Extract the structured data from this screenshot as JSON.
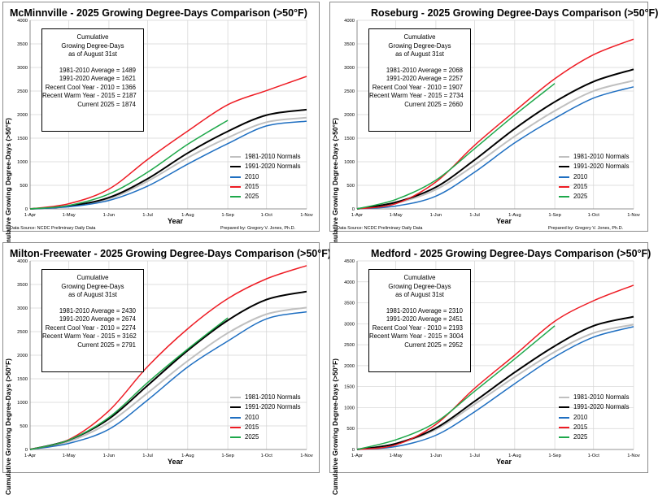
{
  "colors": {
    "n8110": "#c0c0c0",
    "n9120": "#000000",
    "y2010": "#1f6fc1",
    "y2015": "#ee1c24",
    "y2025": "#1ea84a",
    "grid": "#d4d4d4"
  },
  "common": {
    "ylabel": "Cumulative Growing Degree-Days (>50°F)",
    "xlabel": "Year",
    "source": "Data Source: NCDC Preliminary Daily Data",
    "prepared": "Prepared by: Gregory V. Jones, Ph.D.",
    "box_head": [
      "Cumulative",
      "Growing Degree-Days",
      "as of August 31st"
    ],
    "legend": [
      "1981-2010 Normals",
      "1991-2020 Normals",
      "2010",
      "2015",
      "2025"
    ]
  },
  "panels": [
    {
      "title": "McMinnville - 2025 Growing Degree-Days Comparison (>50°F)",
      "stats": [
        "1981-2010 Average = 1489",
        "1991-2020 Average = 1621",
        "Recent Cool Year - 2010 = 1366",
        "Recent Warm Year - 2015 = 2187",
        "Current 2025 = 1874"
      ],
      "chart_data": {
        "type": "line",
        "xticks": [
          "1-Apr",
          "1-May",
          "1-Jun",
          "1-Jul",
          "1-Aug",
          "1-Sep",
          "1-Oct",
          "1-Nov"
        ],
        "ylim": [
          0,
          4000
        ],
        "ytick_step": 500,
        "series": [
          {
            "name": "1981-2010 Normals",
            "key": "n8110",
            "x": [
              0,
              30,
              61,
              91,
              122,
              153,
              183,
              214
            ],
            "y": [
              0,
              55,
              215,
              590,
              1085,
              1510,
              1840,
              1935
            ]
          },
          {
            "name": "1991-2020 Normals",
            "key": "n9120",
            "x": [
              0,
              30,
              61,
              91,
              122,
              153,
              183,
              214
            ],
            "y": [
              0,
              60,
              240,
              640,
              1185,
              1645,
              1990,
              2105
            ]
          },
          {
            "name": "2010",
            "key": "y2010",
            "x": [
              0,
              30,
              61,
              91,
              122,
              153,
              183,
              214
            ],
            "y": [
              0,
              45,
              180,
              485,
              950,
              1385,
              1760,
              1860
            ]
          },
          {
            "name": "2015",
            "key": "y2015",
            "x": [
              0,
              30,
              61,
              91,
              122,
              153,
              183,
              214
            ],
            "y": [
              0,
              110,
              420,
              1050,
              1650,
              2210,
              2510,
              2810
            ]
          },
          {
            "name": "2025",
            "key": "y2025",
            "x": [
              0,
              30,
              61,
              91,
              122,
              153
            ],
            "y": [
              0,
              75,
              315,
              780,
              1370,
              1880
            ]
          }
        ]
      }
    },
    {
      "title": "Roseburg - 2025 Growing Degree-Days Comparison (>50°F)",
      "stats": [
        "1981-2010 Average = 2068",
        "1991-2020 Average = 2257",
        "Recent Cool Year - 2010 = 1907",
        "Recent Warm Year - 2015 = 2734",
        "Current 2025 = 2660"
      ],
      "chart_data": {
        "type": "line",
        "xticks": [
          "1-Apr",
          "1-May",
          "1-Jun",
          "1-Jul",
          "1-Aug",
          "1-Sep",
          "1-Oct",
          "1-Nov"
        ],
        "ylim": [
          0,
          4000
        ],
        "ytick_step": 500,
        "series": [
          {
            "name": "1981-2010 Normals",
            "key": "n8110",
            "x": [
              0,
              30,
              61,
              91,
              122,
              153,
              183,
              214
            ],
            "y": [
              0,
              120,
              410,
              930,
              1540,
              2080,
              2500,
              2720
            ]
          },
          {
            "name": "1991-2020 Normals",
            "key": "n9120",
            "x": [
              0,
              30,
              61,
              91,
              122,
              153,
              183,
              214
            ],
            "y": [
              0,
              140,
              460,
              1040,
              1700,
              2270,
              2700,
              2960
            ]
          },
          {
            "name": "2010",
            "key": "y2010",
            "x": [
              0,
              30,
              61,
              91,
              122,
              153,
              183,
              214
            ],
            "y": [
              0,
              60,
              270,
              780,
              1400,
              1920,
              2350,
              2590
            ]
          },
          {
            "name": "2015",
            "key": "y2015",
            "x": [
              0,
              30,
              61,
              91,
              122,
              153,
              183,
              214
            ],
            "y": [
              0,
              110,
              570,
              1350,
              2070,
              2760,
              3270,
              3600
            ]
          },
          {
            "name": "2025",
            "key": "y2025",
            "x": [
              0,
              30,
              61,
              91,
              122,
              153
            ],
            "y": [
              0,
              200,
              610,
              1280,
              1990,
              2660
            ]
          }
        ]
      }
    },
    {
      "title": "Milton-Freewater - 2025 Growing Degree-Days Comparison (>50°F)",
      "stats": [
        "1981-2010 Average = 2430",
        "1991-2020 Average = 2674",
        "Recent Cool Year - 2010 = 2274",
        "Recent Warm Year - 2015 = 3162",
        "Current 2025 = 2791"
      ],
      "chart_data": {
        "type": "line",
        "xticks": [
          "1-Apr",
          "1-May",
          "1-Jun",
          "1-Jul",
          "1-Aug",
          "1-Sep",
          "1-Oct",
          "1-Nov"
        ],
        "ylim": [
          0,
          4000
        ],
        "ytick_step": 500,
        "series": [
          {
            "name": "1981-2010 Normals",
            "key": "n8110",
            "x": [
              0,
              30,
              61,
              91,
              122,
              153,
              183,
              214
            ],
            "y": [
              0,
              170,
              570,
              1200,
              1880,
              2470,
              2870,
              3010
            ]
          },
          {
            "name": "1991-2020 Normals",
            "key": "n9120",
            "x": [
              0,
              30,
              61,
              91,
              122,
              153,
              183,
              214
            ],
            "y": [
              0,
              200,
              650,
              1360,
              2100,
              2740,
              3180,
              3350
            ]
          },
          {
            "name": "2010",
            "key": "y2010",
            "x": [
              0,
              30,
              61,
              91,
              122,
              153,
              183,
              214
            ],
            "y": [
              0,
              130,
              430,
              1050,
              1750,
              2300,
              2770,
              2920
            ]
          },
          {
            "name": "2015",
            "key": "y2015",
            "x": [
              0,
              30,
              61,
              91,
              122,
              153,
              183,
              214
            ],
            "y": [
              0,
              210,
              820,
              1760,
              2560,
              3200,
              3620,
              3900
            ]
          },
          {
            "name": "2025",
            "key": "y2025",
            "x": [
              0,
              30,
              61,
              91,
              122,
              153
            ],
            "y": [
              0,
              200,
              680,
              1420,
              2130,
              2791
            ]
          }
        ]
      }
    },
    {
      "title": "Medford - 2025 Growing Degree-Days Comparison (>50°F)",
      "stats": [
        "1981-2010 Average = 2310",
        "1991-2020 Average = 2451",
        "Recent Cool Year - 2010 = 2193",
        "Recent Warm Year - 2015 = 3004",
        "Current 2025 = 2952"
      ],
      "chart_data": {
        "type": "line",
        "xticks": [
          "1-Apr",
          "1-May",
          "1-Jun",
          "1-Jul",
          "1-Aug",
          "1-Sep",
          "1-Oct",
          "1-Nov"
        ],
        "ylim": [
          0,
          4500
        ],
        "ytick_step": 500,
        "series": [
          {
            "name": "1981-2010 Normals",
            "key": "n8110",
            "x": [
              0,
              30,
              61,
              91,
              122,
              153,
              183,
              214
            ],
            "y": [
              0,
              130,
              480,
              1080,
              1730,
              2330,
              2780,
              2980
            ]
          },
          {
            "name": "1991-2020 Normals",
            "key": "n9120",
            "x": [
              0,
              30,
              61,
              91,
              122,
              153,
              183,
              214
            ],
            "y": [
              0,
              140,
              510,
              1150,
              1840,
              2470,
              2950,
              3170
            ]
          },
          {
            "name": "2010",
            "key": "y2010",
            "x": [
              0,
              30,
              61,
              91,
              122,
              153,
              183,
              214
            ],
            "y": [
              0,
              70,
              340,
              900,
              1570,
              2210,
              2680,
              2930
            ]
          },
          {
            "name": "2015",
            "key": "y2015",
            "x": [
              0,
              30,
              61,
              91,
              122,
              153,
              183,
              214
            ],
            "y": [
              0,
              110,
              600,
              1460,
              2250,
              3060,
              3550,
              3920
            ]
          },
          {
            "name": "2025",
            "key": "y2025",
            "x": [
              0,
              30,
              61,
              91,
              122,
              153
            ],
            "y": [
              0,
              230,
              650,
              1390,
              2160,
              2952
            ]
          }
        ]
      }
    }
  ]
}
